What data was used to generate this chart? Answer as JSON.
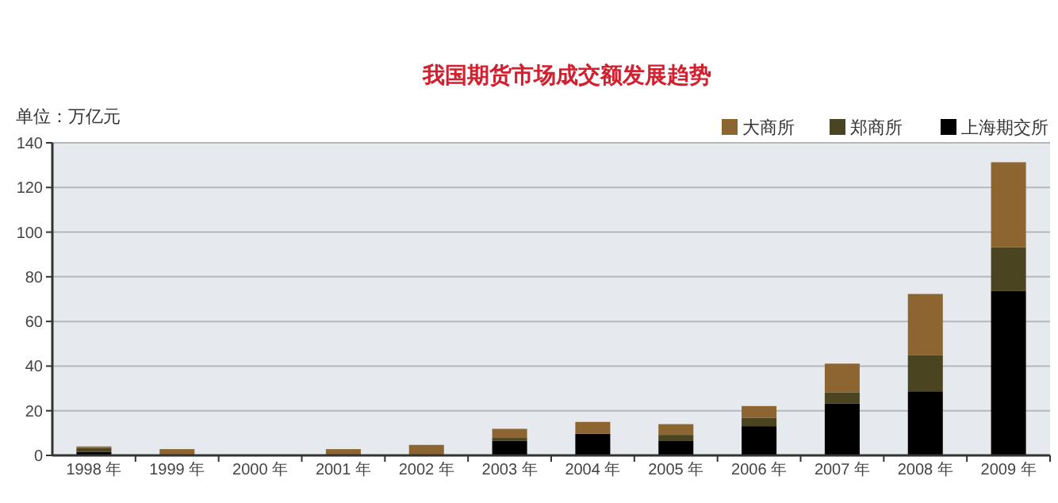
{
  "chart_data": {
    "type": "bar",
    "stacked": true,
    "title": "我国期货市场成交额发展趋势",
    "annotations": [
      "单位：万亿元"
    ],
    "categories": [
      "1998 年",
      "1999 年",
      "2000 年",
      "2001 年",
      "2002 年",
      "2003 年",
      "2004 年",
      "2005 年",
      "2006 年",
      "2007 年",
      "2008 年",
      "2009 年"
    ],
    "series": [
      {
        "name": "上海期交所",
        "color": "#000000",
        "values": [
          1.5,
          0,
          0,
          0,
          0,
          6.6,
          9.7,
          6.4,
          13.1,
          23.3,
          28.7,
          73.6
        ]
      },
      {
        "name": "郑商所",
        "color": "#4a4421",
        "values": [
          1.8,
          0,
          0,
          0,
          0,
          1.2,
          0,
          2.8,
          3.8,
          5.0,
          16.1,
          19.7
        ]
      },
      {
        "name": "大商所",
        "color": "#8c6531",
        "values": [
          0.7,
          2.8,
          0,
          2.8,
          4.7,
          4.1,
          5.3,
          4.8,
          5.2,
          12.8,
          27.5,
          38.0
        ]
      }
    ],
    "ylim": [
      0,
      140
    ],
    "yticks": [
      0,
      20,
      40,
      60,
      80,
      100,
      120,
      140
    ],
    "grid": "y",
    "legend": "top right"
  }
}
